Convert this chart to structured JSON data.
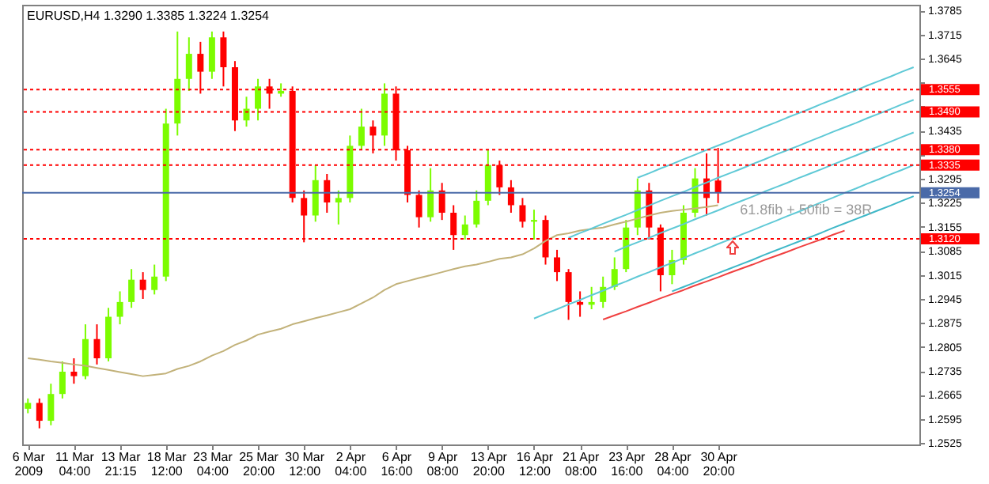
{
  "chart_data": {
    "type": "candlestick",
    "title": "EURUSD,H4  1.3290 1.3385 1.3224 1.3254",
    "categories": [
      "6 Mar 2009",
      null,
      null,
      null,
      "11 Mar 04:00",
      null,
      null,
      null,
      "13 Mar 21:15",
      null,
      null,
      null,
      "18 Mar 12:00",
      null,
      null,
      null,
      "23 Mar 04:00",
      null,
      null,
      null,
      "25 Mar 20:00",
      null,
      null,
      null,
      "30 Mar 12:00",
      null,
      null,
      null,
      "2 Apr 04:00",
      null,
      null,
      null,
      "6 Apr 16:00",
      null,
      null,
      null,
      "9 Apr 08:00",
      null,
      null,
      null,
      "13 Apr 20:00",
      null,
      null,
      null,
      "16 Apr 12:00",
      null,
      null,
      null,
      "21 Apr 08:00",
      null,
      null,
      null,
      "23 Apr 16:00",
      null,
      null,
      null,
      "28 Apr 04:00",
      null,
      null,
      null,
      "30 Apr 20:00",
      null,
      null,
      null,
      null,
      null,
      null,
      null,
      null,
      null,
      null,
      null,
      null,
      null,
      null,
      null,
      null,
      null
    ],
    "ohlc": [
      [
        1.2625,
        1.2655,
        1.2612,
        1.2642
      ],
      [
        1.2642,
        1.2655,
        1.2568,
        1.259
      ],
      [
        1.259,
        1.2698,
        1.2577,
        1.2668
      ],
      [
        1.2668,
        1.2763,
        1.2655,
        1.2733
      ],
      [
        1.2733,
        1.2772,
        1.2698,
        1.272
      ],
      [
        1.272,
        1.2871,
        1.2711,
        1.2828
      ],
      [
        1.2828,
        1.2871,
        1.2754,
        1.2772
      ],
      [
        1.2772,
        1.2919,
        1.2763,
        1.2893
      ],
      [
        1.2893,
        1.2967,
        1.2871,
        1.2936
      ],
      [
        1.2936,
        1.3032,
        1.2919,
        1.3001
      ],
      [
        1.3001,
        1.3023,
        1.2945,
        1.2971
      ],
      [
        1.2971,
        1.3045,
        1.2958,
        1.301
      ],
      [
        1.301,
        1.3499,
        1.2997,
        1.3456
      ],
      [
        1.3456,
        1.3724,
        1.3421,
        1.3586
      ],
      [
        1.3586,
        1.3707,
        1.3551,
        1.3659
      ],
      [
        1.3659,
        1.3694,
        1.3543,
        1.3607
      ],
      [
        1.3607,
        1.3724,
        1.3586,
        1.3707
      ],
      [
        1.3707,
        1.3724,
        1.3564,
        1.362
      ],
      [
        1.362,
        1.3638,
        1.3434,
        1.3465
      ],
      [
        1.3465,
        1.3534,
        1.3447,
        1.3499
      ],
      [
        1.3499,
        1.3586,
        1.3465,
        1.3564
      ],
      [
        1.3564,
        1.3586,
        1.3499,
        1.3543
      ],
      [
        1.3543,
        1.3573,
        1.3534,
        1.3551
      ],
      [
        1.3551,
        1.3564,
        1.3226,
        1.3239
      ],
      [
        1.3239,
        1.3261,
        1.311,
        1.3188
      ],
      [
        1.3188,
        1.3335,
        1.317,
        1.3291
      ],
      [
        1.3291,
        1.3309,
        1.3196,
        1.3226
      ],
      [
        1.3226,
        1.3261,
        1.3162,
        1.3239
      ],
      [
        1.3239,
        1.3421,
        1.3226,
        1.3391
      ],
      [
        1.3391,
        1.3499,
        1.3378,
        1.3447
      ],
      [
        1.3447,
        1.3465,
        1.3369,
        1.3421
      ],
      [
        1.3421,
        1.3573,
        1.3391,
        1.3543
      ],
      [
        1.3543,
        1.3564,
        1.3348,
        1.3378
      ],
      [
        1.3378,
        1.3391,
        1.3226,
        1.3248
      ],
      [
        1.3248,
        1.3261,
        1.3153,
        1.3183
      ],
      [
        1.3183,
        1.3326,
        1.317,
        1.3261
      ],
      [
        1.3261,
        1.3283,
        1.3175,
        1.3196
      ],
      [
        1.3196,
        1.3218,
        1.3088,
        1.3131
      ],
      [
        1.3131,
        1.3188,
        1.3118,
        1.3162
      ],
      [
        1.3162,
        1.3261,
        1.3153,
        1.3231
      ],
      [
        1.3231,
        1.3378,
        1.3218,
        1.3335
      ],
      [
        1.3335,
        1.3348,
        1.3248,
        1.327
      ],
      [
        1.327,
        1.3291,
        1.3196,
        1.3218
      ],
      [
        1.3218,
        1.3239,
        1.3153,
        1.317
      ],
      [
        1.317,
        1.3205,
        1.3118,
        1.3175
      ],
      [
        1.3175,
        1.3188,
        1.3045,
        1.3066
      ],
      [
        1.3066,
        1.3088,
        1.2997,
        1.3023
      ],
      [
        1.3023,
        1.3032,
        1.2884,
        1.2936
      ],
      [
        1.2936,
        1.2967,
        1.2893,
        1.2928
      ],
      [
        1.2928,
        1.298,
        1.2915,
        1.2936
      ],
      [
        1.2936,
        1.301,
        1.2919,
        1.298
      ],
      [
        1.298,
        1.3066,
        1.2971,
        1.3032
      ],
      [
        1.3032,
        1.3175,
        1.3023,
        1.3153
      ],
      [
        1.3153,
        1.3296,
        1.3131,
        1.3261
      ],
      [
        1.3261,
        1.3283,
        1.3118,
        1.3153
      ],
      [
        1.3153,
        1.3162,
        1.2967,
        1.3014
      ],
      [
        1.3014,
        1.3088,
        1.2988,
        1.3058
      ],
      [
        1.3058,
        1.3218,
        1.3045,
        1.3196
      ],
      [
        1.3196,
        1.3326,
        1.3183,
        1.3296
      ],
      [
        1.3296,
        1.3369,
        1.3188,
        1.3239
      ],
      [
        1.329,
        1.3385,
        1.3224,
        1.3254
      ],
      null,
      null,
      null,
      null,
      null,
      null,
      null,
      null,
      null,
      null,
      null,
      null,
      null,
      null,
      null,
      null,
      null
    ],
    "colors": [
      "#7cfc00",
      "#ff0000",
      "#7cfc00",
      "#7cfc00",
      "#ff0000",
      "#7cfc00",
      "#ff0000",
      "#7cfc00",
      "#7cfc00",
      "#7cfc00",
      "#ff0000",
      "#7cfc00",
      "#7cfc00",
      "#7cfc00",
      "#7cfc00",
      "#ff0000",
      "#7cfc00",
      "#ff0000",
      "#ff0000",
      "#7cfc00",
      "#7cfc00",
      "#ff0000",
      "#7cfc00",
      "#ff0000",
      "#ff0000",
      "#7cfc00",
      "#ff0000",
      "#7cfc00",
      "#7cfc00",
      "#7cfc00",
      "#ff0000",
      "#7cfc00",
      "#ff0000",
      "#ff0000",
      "#ff0000",
      "#7cfc00",
      "#ff0000",
      "#ff0000",
      "#7cfc00",
      "#7cfc00",
      "#7cfc00",
      "#ff0000",
      "#ff0000",
      "#ff0000",
      "#7cfc00",
      "#ff0000",
      "#ff0000",
      "#ff0000",
      "#ff0000",
      "#7cfc00",
      "#7cfc00",
      "#7cfc00",
      "#7cfc00",
      "#7cfc00",
      "#ff0000",
      "#ff0000",
      "#7cfc00",
      "#7cfc00",
      "#7cfc00",
      "#ff0000",
      "#ff0000",
      null,
      null,
      null,
      null,
      null,
      null,
      null,
      null,
      null,
      null,
      null,
      null,
      null,
      null,
      null,
      null,
      null
    ],
    "series": [
      {
        "type": "line",
        "color": "#c2b27a",
        "values": [
          1.2772,
          1.2768,
          1.2763,
          1.2759,
          1.2754,
          1.275,
          1.2744,
          1.2738,
          1.2732,
          1.2726,
          1.272,
          1.2724,
          1.2728,
          1.2741,
          1.275,
          1.2763,
          1.278,
          1.2793,
          1.2811,
          1.2824,
          1.2841,
          1.285,
          1.2858,
          1.2871,
          1.288,
          1.2889,
          1.2897,
          1.2906,
          1.2915,
          1.2932,
          1.2949,
          1.2971,
          1.2988,
          1.2997,
          1.3006,
          1.3014,
          1.3023,
          1.3032,
          1.304,
          1.3045,
          1.3053,
          1.3062,
          1.3066,
          1.3075,
          1.3092,
          1.3114,
          1.3131,
          1.3136,
          1.3144,
          1.3149,
          1.3153,
          1.3162,
          1.317,
          1.3179,
          1.3188,
          1.3196,
          1.3201,
          1.3205,
          1.3209,
          1.3213,
          1.3218,
          null,
          null,
          null,
          null,
          null,
          null,
          null,
          null,
          null,
          null,
          null,
          null,
          null,
          null,
          null,
          null,
          null
        ]
      },
      {
        "type": "line",
        "color": "#5fc9d6",
        "values": [
          null,
          null,
          null,
          null,
          null,
          null,
          null,
          null,
          null,
          null,
          null,
          null,
          null,
          null,
          null,
          null,
          null,
          null,
          null,
          null,
          null,
          null,
          null,
          null,
          null,
          null,
          null,
          null,
          null,
          null,
          null,
          null,
          null,
          null,
          null,
          null,
          null,
          null,
          null,
          null,
          null,
          null,
          null,
          null,
          null,
          null,
          null,
          null,
          null,
          null,
          null,
          null,
          null,
          1.3298,
          1.3311,
          1.3325,
          1.3338,
          1.3352,
          1.3365,
          1.3379,
          1.3392,
          1.3405,
          1.3419,
          1.3432,
          1.3446,
          1.3459,
          1.3473,
          1.3486,
          1.3499,
          1.3513,
          1.3526,
          1.354,
          1.3553,
          1.3567,
          1.358,
          1.3593,
          1.3607,
          1.362
        ]
      },
      {
        "type": "line",
        "color": "#5fc9d6",
        "values": [
          null,
          null,
          null,
          null,
          null,
          null,
          null,
          null,
          null,
          null,
          null,
          null,
          null,
          null,
          null,
          null,
          null,
          null,
          null,
          null,
          null,
          null,
          null,
          null,
          null,
          null,
          null,
          null,
          null,
          null,
          null,
          null,
          null,
          null,
          null,
          null,
          null,
          null,
          null,
          null,
          null,
          null,
          null,
          null,
          null,
          null,
          null,
          1.3123,
          1.3137,
          1.315,
          1.3164,
          1.3177,
          1.319,
          1.3204,
          1.3217,
          1.3231,
          1.3244,
          1.3257,
          1.3271,
          1.3284,
          1.3298,
          1.3311,
          1.3324,
          1.3338,
          1.3351,
          1.3365,
          1.3378,
          1.3391,
          1.3405,
          1.3418,
          1.3432,
          1.3445,
          1.3458,
          1.3472,
          1.3485,
          1.3498,
          1.3512,
          1.3525
        ]
      },
      {
        "type": "line",
        "color": "#5fc9d6",
        "values": [
          null,
          null,
          null,
          null,
          null,
          null,
          null,
          null,
          null,
          null,
          null,
          null,
          null,
          null,
          null,
          null,
          null,
          null,
          null,
          null,
          null,
          null,
          null,
          null,
          null,
          null,
          null,
          null,
          null,
          null,
          null,
          null,
          null,
          null,
          null,
          null,
          null,
          null,
          null,
          null,
          null,
          null,
          null,
          null,
          null,
          null,
          null,
          null,
          null,
          null,
          null,
          1.3083,
          1.3097,
          1.311,
          1.3123,
          1.3137,
          1.315,
          1.3163,
          1.3177,
          1.319,
          1.3203,
          1.3217,
          1.323,
          1.3243,
          1.3257,
          1.327,
          1.3283,
          1.3297,
          1.331,
          1.3323,
          1.3337,
          1.335,
          1.3363,
          1.3377,
          1.339,
          1.3403,
          1.3417,
          1.343
        ]
      },
      {
        "type": "line",
        "color": "#5fc9d6",
        "values": [
          null,
          null,
          null,
          null,
          null,
          null,
          null,
          null,
          null,
          null,
          null,
          null,
          null,
          null,
          null,
          null,
          null,
          null,
          null,
          null,
          null,
          null,
          null,
          null,
          null,
          null,
          null,
          null,
          null,
          null,
          null,
          null,
          null,
          null,
          null,
          null,
          null,
          null,
          null,
          null,
          null,
          null,
          null,
          null,
          1.2888,
          1.2902,
          1.2915,
          1.2929,
          1.2942,
          1.2956,
          1.2969,
          1.2983,
          1.2996,
          1.301,
          1.3023,
          1.3037,
          1.305,
          1.3064,
          1.3078,
          1.3091,
          1.3105,
          1.3118,
          1.3132,
          1.3145,
          1.3159,
          1.3172,
          1.3186,
          1.3199,
          1.3213,
          1.3227,
          1.324,
          1.3254,
          1.3267,
          1.3281,
          1.3294,
          1.3308,
          1.3321,
          1.3335
        ]
      },
      {
        "type": "line",
        "color": "#3fb8c8",
        "values": [
          null,
          null,
          null,
          null,
          null,
          null,
          null,
          null,
          null,
          null,
          null,
          null,
          null,
          null,
          null,
          null,
          null,
          null,
          null,
          null,
          null,
          null,
          null,
          null,
          null,
          null,
          null,
          null,
          null,
          null,
          null,
          null,
          null,
          null,
          null,
          null,
          null,
          null,
          null,
          null,
          null,
          null,
          null,
          null,
          null,
          null,
          null,
          null,
          null,
          null,
          null,
          null,
          null,
          null,
          null,
          null,
          1.2967,
          1.298,
          1.2993,
          1.3007,
          1.302,
          1.3033,
          1.3046,
          1.3059,
          1.3073,
          1.3086,
          1.3099,
          1.3112,
          1.3125,
          1.3138,
          1.3152,
          1.3165,
          1.3178,
          1.3191,
          1.3204,
          1.3217,
          1.3231,
          1.3244
        ]
      },
      {
        "type": "line",
        "color": "#f04040",
        "values": [
          null,
          null,
          null,
          null,
          null,
          null,
          null,
          null,
          null,
          null,
          null,
          null,
          null,
          null,
          null,
          null,
          null,
          null,
          null,
          null,
          null,
          null,
          null,
          null,
          null,
          null,
          null,
          null,
          null,
          null,
          null,
          null,
          null,
          null,
          null,
          null,
          null,
          null,
          null,
          null,
          null,
          null,
          null,
          null,
          null,
          null,
          null,
          null,
          null,
          null,
          1.2885,
          1.2897,
          1.2909,
          1.2922,
          1.2934,
          1.2947,
          1.2959,
          1.2971,
          1.2984,
          1.2996,
          1.3008,
          1.3021,
          1.3033,
          1.3045,
          1.3058,
          1.307,
          1.3082,
          1.3095,
          1.3107,
          1.3119,
          1.3132,
          1.3144,
          null,
          null,
          null,
          null,
          null,
          null
        ]
      }
    ],
    "ylim": [
      1.2521,
      1.3802
    ],
    "yticks": [
      1.3785,
      1.3715,
      1.3645,
      {
        "value": 1.3575,
        "label": null
      },
      {
        "value": 1.3505,
        "label": null
      },
      1.3435,
      {
        "value": 1.3365,
        "label": null
      },
      1.3295,
      1.3225,
      1.3155,
      1.3085,
      1.3015,
      1.2945,
      1.2875,
      1.2805,
      1.2735,
      1.2665,
      1.2595,
      1.2525
    ],
    "ref_lines": [
      {
        "axis": "y",
        "value": 1.3555,
        "label": "1.3555",
        "color": "#ff0000",
        "line_style": "dotted"
      },
      {
        "axis": "y",
        "value": 1.349,
        "label": "1.3490",
        "color": "#ff0000",
        "line_style": "dotted"
      },
      {
        "axis": "y",
        "value": 1.338,
        "label": "1.3380",
        "color": "#ff0000",
        "line_style": "dotted"
      },
      {
        "axis": "y",
        "value": 1.3335,
        "label": "1.3335",
        "color": "#ff0000",
        "line_style": "dotted"
      },
      {
        "axis": "y",
        "value": 1.3254,
        "label": "1.3254",
        "color": "#4a6aa8",
        "line_style": "solid"
      },
      {
        "axis": "y",
        "value": 1.312,
        "label": "1.3120",
        "color": "#ff0000",
        "line_style": "dotted"
      }
    ],
    "annotations": [
      "61.8fib + 50fib = 38R"
    ]
  }
}
